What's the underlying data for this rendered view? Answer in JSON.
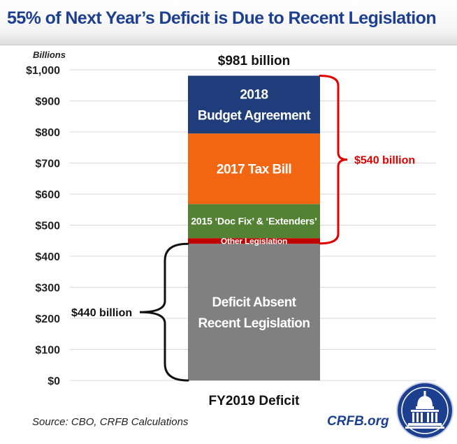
{
  "header": {
    "title": "55% of Next Year’s Deficit is Due to Recent Legislation"
  },
  "footer": {
    "source": "Source: CBO, CRFB Calculations",
    "brand": "CRFB.org"
  },
  "colors": {
    "title": "#1d3f8f",
    "deficit_absent": "#808080",
    "other_legislation": "#c00000",
    "doc_fix": "#548235",
    "tax_bill": "#f26511",
    "budget_agreement": "#1f3d7a",
    "bracket_red": "#e00000"
  },
  "chart_data": {
    "type": "bar",
    "stacked": true,
    "title": "55% of Next Year’s Deficit is Due to Recent Legislation",
    "ylabel": "Billions",
    "xlabel": "FY2019 Deficit",
    "categories": [
      "FY2019 Deficit"
    ],
    "ylim": [
      0,
      1000
    ],
    "yticks": [
      0,
      100,
      200,
      300,
      400,
      500,
      600,
      700,
      800,
      900,
      1000
    ],
    "ytick_labels": [
      "$0",
      "$100",
      "$200",
      "$300",
      "$400",
      "$500",
      "$600",
      "$700",
      "$800",
      "$900",
      "$1,000"
    ],
    "grid": true,
    "total_label": "$981 billion",
    "series": [
      {
        "name": "Deficit Absent Recent Legislation",
        "label_lines": [
          "Deficit Absent",
          "Recent Legislation"
        ],
        "values": [
          440
        ],
        "color": "#808080",
        "text_color": "#ffffff"
      },
      {
        "name": "Other Legislation",
        "label_lines": [
          "Other  Legislation"
        ],
        "values": [
          18
        ],
        "color": "#c00000",
        "text_color": "#ffffff"
      },
      {
        "name": "2015 ‘Doc Fix’ & ‘Extenders’",
        "label_lines": [
          "2015 ‘Doc Fix’ & ‘Extenders’"
        ],
        "values": [
          110
        ],
        "color": "#548235",
        "text_color": "#ffffff"
      },
      {
        "name": "2017 Tax Bill",
        "label_lines": [
          "2017 Tax Bill"
        ],
        "values": [
          227
        ],
        "color": "#f26511",
        "text_color": "#ffffff"
      },
      {
        "name": "2018 Budget Agreement",
        "label_lines": [
          "2018",
          "Budget Agreement"
        ],
        "values": [
          186
        ],
        "color": "#1f3d7a",
        "text_color": "#ffffff"
      }
    ],
    "annotations": [
      {
        "label": "$540 billion",
        "from": 441,
        "to": 981,
        "side": "right",
        "color": "#e00000"
      },
      {
        "label": "$440 billion",
        "from": 0,
        "to": 440,
        "side": "left",
        "color": "#111111"
      }
    ]
  }
}
